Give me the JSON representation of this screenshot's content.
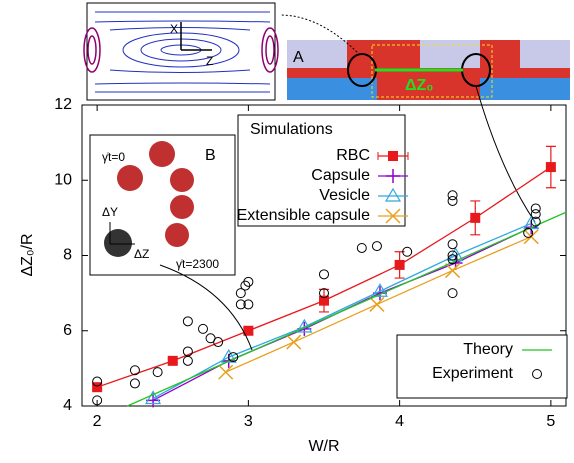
{
  "chart_data": {
    "type": "line",
    "xlabel": "W/R",
    "ylabel": "ΔZ₀/R",
    "xlim": [
      1.9,
      5.1
    ],
    "ylim": [
      4,
      12
    ],
    "xticks": [
      2,
      3,
      4,
      5
    ],
    "yticks": [
      4,
      6,
      8,
      10,
      12
    ],
    "legend_title": "Simulations",
    "series": [
      {
        "name": "RBC",
        "color": "#e8191c",
        "marker": "square",
        "line": true,
        "group": 1,
        "x": [
          2,
          2.5,
          3,
          3.5,
          4,
          4.5,
          5
        ],
        "values": [
          4.5,
          5.2,
          6.0,
          6.8,
          7.75,
          9.0,
          10.35
        ],
        "errors": [
          0.05,
          0.05,
          0.08,
          0.3,
          0.35,
          0.45,
          0.55
        ]
      },
      {
        "name": "Capsule",
        "color": "#9400d3",
        "marker": "plus",
        "line": true,
        "group": 1,
        "x": [
          2.37,
          2.87,
          3.37,
          3.87,
          4.37,
          4.87
        ],
        "values": [
          4.15,
          5.2,
          6.05,
          7.0,
          7.8,
          8.75
        ]
      },
      {
        "name": "Vesicle",
        "color": "#30a8e0",
        "marker": "triangle",
        "line": true,
        "group": 1,
        "x": [
          2.37,
          2.87,
          3.37,
          3.87,
          4.37,
          4.87
        ],
        "values": [
          4.2,
          5.3,
          6.1,
          7.05,
          8.0,
          8.85
        ]
      },
      {
        "name": "Extensible capsule",
        "color": "#e8a020",
        "marker": "cross",
        "line": true,
        "group": 1,
        "x": [
          2.85,
          3.3,
          3.85,
          4.35,
          4.87
        ],
        "values": [
          4.9,
          5.7,
          6.7,
          7.6,
          8.5
        ]
      },
      {
        "name": "Theory",
        "color": "#22c522",
        "marker": "none",
        "line": true,
        "group": 2,
        "x": [
          2.2,
          5.1
        ],
        "values": [
          4.0,
          9.15
        ]
      },
      {
        "name": "Experiment",
        "color": "#000000",
        "marker": "circle",
        "line": false,
        "group": 2,
        "x": [
          2,
          2,
          2.25,
          2.25,
          2.4,
          2.6,
          2.6,
          2.6,
          2.7,
          2.75,
          2.8,
          2.9,
          2.95,
          2.95,
          2.98,
          3.0,
          3.0,
          3.5,
          3.5,
          3.75,
          3.85,
          4.05,
          4.35,
          4.35,
          4.35,
          4.35,
          4.35,
          4.35,
          4.9,
          4.9,
          4.9,
          4.85
        ],
        "values": [
          4.65,
          4.15,
          4.6,
          4.95,
          4.9,
          5.2,
          5.45,
          6.25,
          6.05,
          5.8,
          5.7,
          5.3,
          6.7,
          7.0,
          7.2,
          6.7,
          7.3,
          7.5,
          7.0,
          8.2,
          8.25,
          8.1,
          7.9,
          8.0,
          9.6,
          9.45,
          7.0,
          8.3,
          8.9,
          9.1,
          9.25,
          8.6
        ]
      }
    ],
    "insets": {
      "streamlines": {
        "x_axis": "X",
        "z_axis": "Z"
      },
      "A": {
        "label": "A",
        "distance": "ΔZ₀"
      },
      "B": {
        "label": "B",
        "start": "γ̇t=0",
        "end": "γ̇t=2300",
        "dy": "ΔY",
        "dz": "ΔZ"
      }
    }
  }
}
